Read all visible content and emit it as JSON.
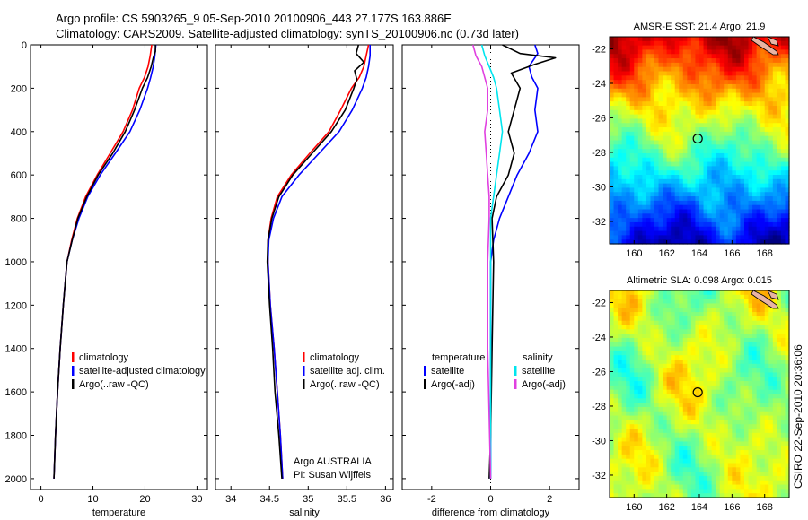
{
  "figure": {
    "title_line1": "Argo profile: CS 5903265_9 05-Sep-2010 20100906_443 27.177S 163.886E",
    "title_line2": "Climatology: CARS2009. Satellite-adjusted climatology: synTS_20100906.nc (0.73d later)",
    "side_label": "CSIRO 22-Sep-2010 20:36:06",
    "credit_line1": "Argo AUSTRALIA",
    "credit_line2": "PI: Susan Wijffels"
  },
  "colors": {
    "climatology": "#ff0000",
    "satellite": "#0000ff",
    "argo": "#000000",
    "sal_satellite": "#00e5ee",
    "sal_argo": "#e040e0"
  },
  "chart_data": [
    {
      "id": "temperature",
      "type": "line",
      "xlabel": "temperature",
      "ylabel": "",
      "xlim": [
        -2,
        32
      ],
      "ylim": [
        2050,
        0
      ],
      "xticks": [
        0,
        10,
        20,
        30
      ],
      "yticks": [
        0,
        200,
        400,
        600,
        800,
        1000,
        1200,
        1400,
        1600,
        1800,
        2000
      ],
      "legend": [
        "climatology",
        "satellite-adjusted climatology",
        "Argo(..raw -QC)"
      ],
      "series": [
        {
          "name": "climatology",
          "color_key": "climatology",
          "points": [
            [
              21.3,
              0
            ],
            [
              21.0,
              50
            ],
            [
              20.6,
              100
            ],
            [
              19.9,
              150
            ],
            [
              18.9,
              200
            ],
            [
              17.6,
              300
            ],
            [
              15.8,
              400
            ],
            [
              13.3,
              500
            ],
            [
              10.8,
              600
            ],
            [
              8.6,
              700
            ],
            [
              7.0,
              800
            ],
            [
              5.9,
              900
            ],
            [
              5.0,
              1000
            ],
            [
              4.3,
              1200
            ],
            [
              3.7,
              1400
            ],
            [
              3.2,
              1600
            ],
            [
              2.8,
              1800
            ],
            [
              2.5,
              2000
            ]
          ]
        },
        {
          "name": "satellite-adjusted climatology",
          "color_key": "satellite",
          "points": [
            [
              22.1,
              0
            ],
            [
              21.9,
              50
            ],
            [
              21.6,
              100
            ],
            [
              21.1,
              150
            ],
            [
              20.5,
              200
            ],
            [
              19.0,
              300
            ],
            [
              17.1,
              400
            ],
            [
              14.3,
              500
            ],
            [
              11.4,
              600
            ],
            [
              9.0,
              700
            ],
            [
              7.3,
              800
            ],
            [
              6.0,
              900
            ],
            [
              5.0,
              1000
            ],
            [
              4.3,
              1200
            ],
            [
              3.7,
              1400
            ],
            [
              3.2,
              1600
            ],
            [
              2.8,
              1800
            ],
            [
              2.5,
              2000
            ]
          ]
        },
        {
          "name": "Argo(..raw -QC)",
          "color_key": "argo",
          "points": [
            [
              22.0,
              0
            ],
            [
              22.0,
              30
            ],
            [
              21.6,
              60
            ],
            [
              21.2,
              100
            ],
            [
              20.5,
              150
            ],
            [
              19.5,
              200
            ],
            [
              18.0,
              300
            ],
            [
              16.2,
              400
            ],
            [
              13.8,
              500
            ],
            [
              11.0,
              600
            ],
            [
              8.8,
              700
            ],
            [
              7.1,
              800
            ],
            [
              6.0,
              900
            ],
            [
              5.0,
              1000
            ],
            [
              4.3,
              1200
            ],
            [
              3.7,
              1400
            ],
            [
              3.2,
              1600
            ],
            [
              2.8,
              1800
            ],
            [
              2.5,
              2000
            ]
          ]
        }
      ]
    },
    {
      "id": "salinity",
      "type": "line",
      "xlabel": "salinity",
      "ylabel": "",
      "xlim": [
        33.8,
        36.1
      ],
      "ylim": [
        2050,
        0
      ],
      "xticks": [
        34,
        34.5,
        35,
        35.5,
        36
      ],
      "yticks": [
        0,
        200,
        400,
        600,
        800,
        1000,
        1200,
        1400,
        1600,
        1800,
        2000
      ],
      "legend": [
        "climatology",
        "satellite adj. clim.",
        "Argo(..raw -QC)"
      ],
      "series": [
        {
          "name": "climatology",
          "color_key": "climatology",
          "points": [
            [
              35.78,
              0
            ],
            [
              35.75,
              50
            ],
            [
              35.72,
              100
            ],
            [
              35.66,
              150
            ],
            [
              35.56,
              200
            ],
            [
              35.42,
              300
            ],
            [
              35.27,
              400
            ],
            [
              35.02,
              500
            ],
            [
              34.78,
              600
            ],
            [
              34.6,
              700
            ],
            [
              34.52,
              800
            ],
            [
              34.48,
              900
            ],
            [
              34.48,
              1000
            ],
            [
              34.51,
              1200
            ],
            [
              34.56,
              1400
            ],
            [
              34.6,
              1600
            ],
            [
              34.64,
              1800
            ],
            [
              34.67,
              2000
            ]
          ]
        },
        {
          "name": "satellite adj. clim.",
          "color_key": "satellite",
          "points": [
            [
              35.8,
              0
            ],
            [
              35.8,
              50
            ],
            [
              35.78,
              100
            ],
            [
              35.75,
              150
            ],
            [
              35.7,
              200
            ],
            [
              35.57,
              300
            ],
            [
              35.4,
              400
            ],
            [
              35.14,
              500
            ],
            [
              34.88,
              600
            ],
            [
              34.66,
              700
            ],
            [
              34.55,
              800
            ],
            [
              34.49,
              900
            ],
            [
              34.48,
              1000
            ],
            [
              34.51,
              1200
            ],
            [
              34.56,
              1400
            ],
            [
              34.6,
              1600
            ],
            [
              34.64,
              1800
            ],
            [
              34.67,
              2000
            ]
          ]
        },
        {
          "name": "Argo(..raw -QC)",
          "color_key": "argo",
          "points": [
            [
              35.65,
              0
            ],
            [
              35.62,
              40
            ],
            [
              35.72,
              80
            ],
            [
              35.6,
              120
            ],
            [
              35.63,
              160
            ],
            [
              35.59,
              200
            ],
            [
              35.48,
              300
            ],
            [
              35.3,
              400
            ],
            [
              35.05,
              500
            ],
            [
              34.8,
              600
            ],
            [
              34.62,
              700
            ],
            [
              34.53,
              800
            ],
            [
              34.48,
              900
            ],
            [
              34.47,
              1000
            ],
            [
              34.5,
              1200
            ],
            [
              34.54,
              1400
            ],
            [
              34.57,
              1600
            ],
            [
              34.62,
              1800
            ],
            [
              34.66,
              2000
            ]
          ]
        }
      ]
    },
    {
      "id": "difference",
      "type": "line",
      "xlabel": "difference from climatology",
      "ylabel": "",
      "xlim": [
        -3,
        3
      ],
      "ylim": [
        2050,
        0
      ],
      "xticks": [
        -2,
        0,
        2
      ],
      "yticks": [
        0,
        200,
        400,
        600,
        800,
        1000,
        1200,
        1400,
        1600,
        1800,
        2000
      ],
      "legend_headers": [
        "temperature",
        "salinity"
      ],
      "legend": [
        "satellite",
        "Argo(-adj)",
        "satellite",
        "Argo(-adj)"
      ],
      "series": [
        {
          "name": "satellite",
          "group": "temperature",
          "color_key": "satellite",
          "points": [
            [
              1.5,
              0
            ],
            [
              1.6,
              40
            ],
            [
              1.3,
              100
            ],
            [
              1.4,
              150
            ],
            [
              1.6,
              200
            ],
            [
              1.5,
              300
            ],
            [
              1.6,
              400
            ],
            [
              1.3,
              500
            ],
            [
              0.9,
              600
            ],
            [
              0.6,
              700
            ],
            [
              0.3,
              800
            ],
            [
              0.1,
              900
            ],
            [
              0,
              1000
            ],
            [
              0,
              2000
            ]
          ]
        },
        {
          "name": "Argo(-adj)",
          "group": "temperature",
          "color_key": "argo",
          "points": [
            [
              0.4,
              0
            ],
            [
              1.0,
              40
            ],
            [
              2.2,
              60
            ],
            [
              1.5,
              90
            ],
            [
              0.7,
              130
            ],
            [
              1.0,
              200
            ],
            [
              0.8,
              300
            ],
            [
              0.6,
              400
            ],
            [
              0.8,
              500
            ],
            [
              0.6,
              600
            ],
            [
              0.2,
              700
            ],
            [
              0.05,
              800
            ],
            [
              0.1,
              1000
            ],
            [
              0.05,
              1400
            ],
            [
              0,
              1800
            ],
            [
              -0.05,
              2000
            ]
          ]
        },
        {
          "name": "satellite",
          "group": "salinity",
          "color_key": "sal_satellite",
          "points": [
            [
              -0.3,
              0
            ],
            [
              -0.2,
              50
            ],
            [
              -0.05,
              100
            ],
            [
              0.1,
              150
            ],
            [
              0.2,
              200
            ],
            [
              0.3,
              300
            ],
            [
              0.4,
              400
            ],
            [
              0.3,
              500
            ],
            [
              0.2,
              600
            ],
            [
              0.1,
              700
            ],
            [
              0,
              800
            ],
            [
              0,
              2000
            ]
          ]
        },
        {
          "name": "Argo(-adj)",
          "group": "salinity",
          "color_key": "sal_argo",
          "points": [
            [
              -0.6,
              0
            ],
            [
              -0.5,
              50
            ],
            [
              -0.3,
              100
            ],
            [
              -0.1,
              200
            ],
            [
              -0.1,
              300
            ],
            [
              -0.2,
              400
            ],
            [
              -0.15,
              500
            ],
            [
              -0.1,
              600
            ],
            [
              -0.05,
              700
            ],
            [
              -0.05,
              800
            ],
            [
              -0.1,
              1000
            ],
            [
              -0.1,
              1400
            ],
            [
              0,
              2000
            ]
          ]
        }
      ]
    },
    {
      "id": "sst-map",
      "type": "heatmap",
      "title": "AMSR-E SST: 21.4 Argo: 21.9",
      "xlim": [
        158.5,
        169.5
      ],
      "ylim": [
        -33.3,
        -21.3
      ],
      "xticks": [
        160,
        162,
        164,
        166,
        168
      ],
      "yticks": [
        -22,
        -24,
        -26,
        -28,
        -30,
        -32
      ],
      "marker": [
        163.9,
        -27.2
      ]
    },
    {
      "id": "sla-map",
      "type": "heatmap",
      "title": "Altimetric SLA: 0.098 Argo: 0.015",
      "xlim": [
        158.5,
        169.5
      ],
      "ylim": [
        -33.3,
        -21.3
      ],
      "xticks": [
        160,
        162,
        164,
        166,
        168
      ],
      "yticks": [
        -22,
        -24,
        -26,
        -28,
        -30,
        -32
      ],
      "marker": [
        163.9,
        -27.2
      ]
    }
  ]
}
